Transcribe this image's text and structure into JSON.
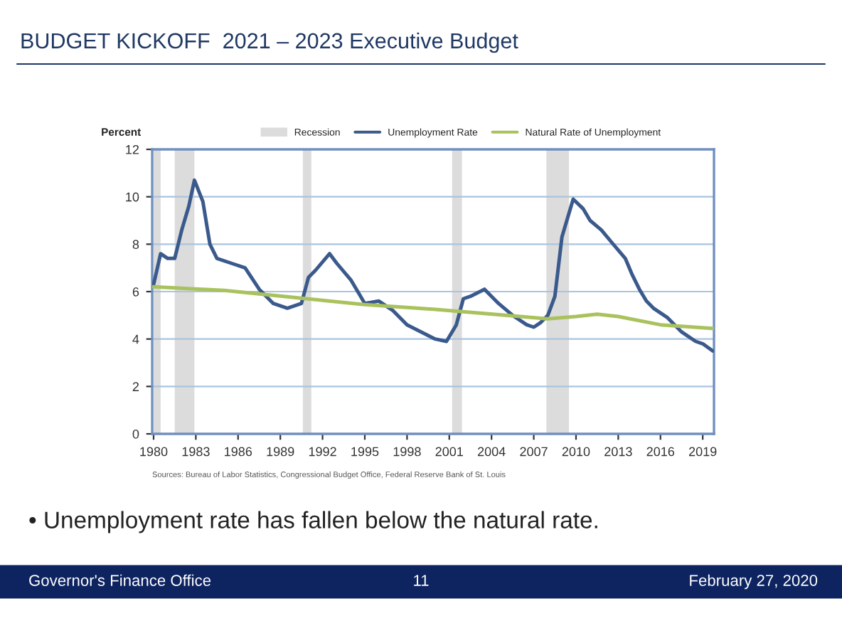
{
  "chart_data": {
    "type": "line",
    "title": "BUDGET KICKOFF  2021 – 2023 Executive Budget",
    "ylabel": "Percent",
    "xlim": [
      1979.9,
      2019.8
    ],
    "xticks": [
      1980,
      1983,
      1986,
      1989,
      1992,
      1995,
      1998,
      2001,
      2004,
      2007,
      2010,
      2013,
      2016,
      2019
    ],
    "ylim": [
      0,
      12
    ],
    "yticks": [
      0,
      2,
      4,
      6,
      8,
      10,
      12
    ],
    "grid": "y",
    "legend": "top",
    "bands": [
      {
        "axis": "x",
        "from": 1980.0,
        "to": 1980.5,
        "label": "Recession",
        "color": "#dcdcdc"
      },
      {
        "axis": "x",
        "from": 1981.5,
        "to": 1982.9,
        "color": "#dcdcdc"
      },
      {
        "axis": "x",
        "from": 1990.6,
        "to": 1991.2,
        "color": "#dcdcdc"
      },
      {
        "axis": "x",
        "from": 2001.2,
        "to": 2001.9,
        "color": "#dcdcdc"
      },
      {
        "axis": "x",
        "from": 2007.9,
        "to": 2009.5,
        "color": "#dcdcdc"
      }
    ],
    "series": [
      {
        "name": "Unemployment Rate",
        "color": "#3b5a8c",
        "x": [
          1980.0,
          1980.5,
          1981.0,
          1981.5,
          1982.0,
          1982.5,
          1982.9,
          1983.5,
          1984.0,
          1984.5,
          1985.5,
          1986.5,
          1987.5,
          1988.5,
          1989.5,
          1990.5,
          1991.0,
          1991.5,
          1992.5,
          1993.0,
          1994.0,
          1995.0,
          1996.0,
          1997.0,
          1998.0,
          1999.0,
          2000.0,
          2000.8,
          2001.5,
          2002.0,
          2002.5,
          2003.5,
          2004.5,
          2005.5,
          2006.5,
          2007.0,
          2007.5,
          2008.0,
          2008.5,
          2009.0,
          2009.8,
          2010.5,
          2011.0,
          2011.8,
          2012.5,
          2013.5,
          2014.0,
          2014.5,
          2015.0,
          2015.5,
          2016.5,
          2017.0,
          2017.5,
          2018.0,
          2018.5,
          2019.0,
          2019.7
        ],
        "values": [
          6.3,
          7.6,
          7.4,
          7.4,
          8.6,
          9.6,
          10.7,
          9.8,
          8.0,
          7.4,
          7.2,
          7.0,
          6.1,
          5.5,
          5.3,
          5.5,
          6.6,
          6.9,
          7.6,
          7.2,
          6.5,
          5.5,
          5.6,
          5.2,
          4.6,
          4.3,
          4.0,
          3.9,
          4.6,
          5.7,
          5.8,
          6.1,
          5.5,
          5.0,
          4.6,
          4.5,
          4.7,
          5.0,
          5.8,
          8.3,
          9.9,
          9.5,
          9.0,
          8.6,
          8.1,
          7.4,
          6.7,
          6.1,
          5.6,
          5.3,
          4.9,
          4.6,
          4.3,
          4.1,
          3.9,
          3.8,
          3.5
        ]
      },
      {
        "name": "Natural Rate of Unemployment",
        "color": "#a9c25d",
        "x": [
          1980,
          1985,
          1990,
          1995,
          2000,
          2005,
          2008,
          2010,
          2011.5,
          2013,
          2016,
          2019.7
        ],
        "values": [
          6.2,
          6.05,
          5.75,
          5.45,
          5.25,
          5.0,
          4.85,
          4.95,
          5.05,
          4.95,
          4.6,
          4.45
        ]
      }
    ],
    "annotations": [
      "Sources: Bureau of Labor Statistics, Congressional Budget Office, Federal Reserve Bank of St. Louis",
      "• Unemployment rate has fallen below the natural rate.",
      "Governor's Finance Office",
      "11",
      "February 27, 2020"
    ]
  }
}
